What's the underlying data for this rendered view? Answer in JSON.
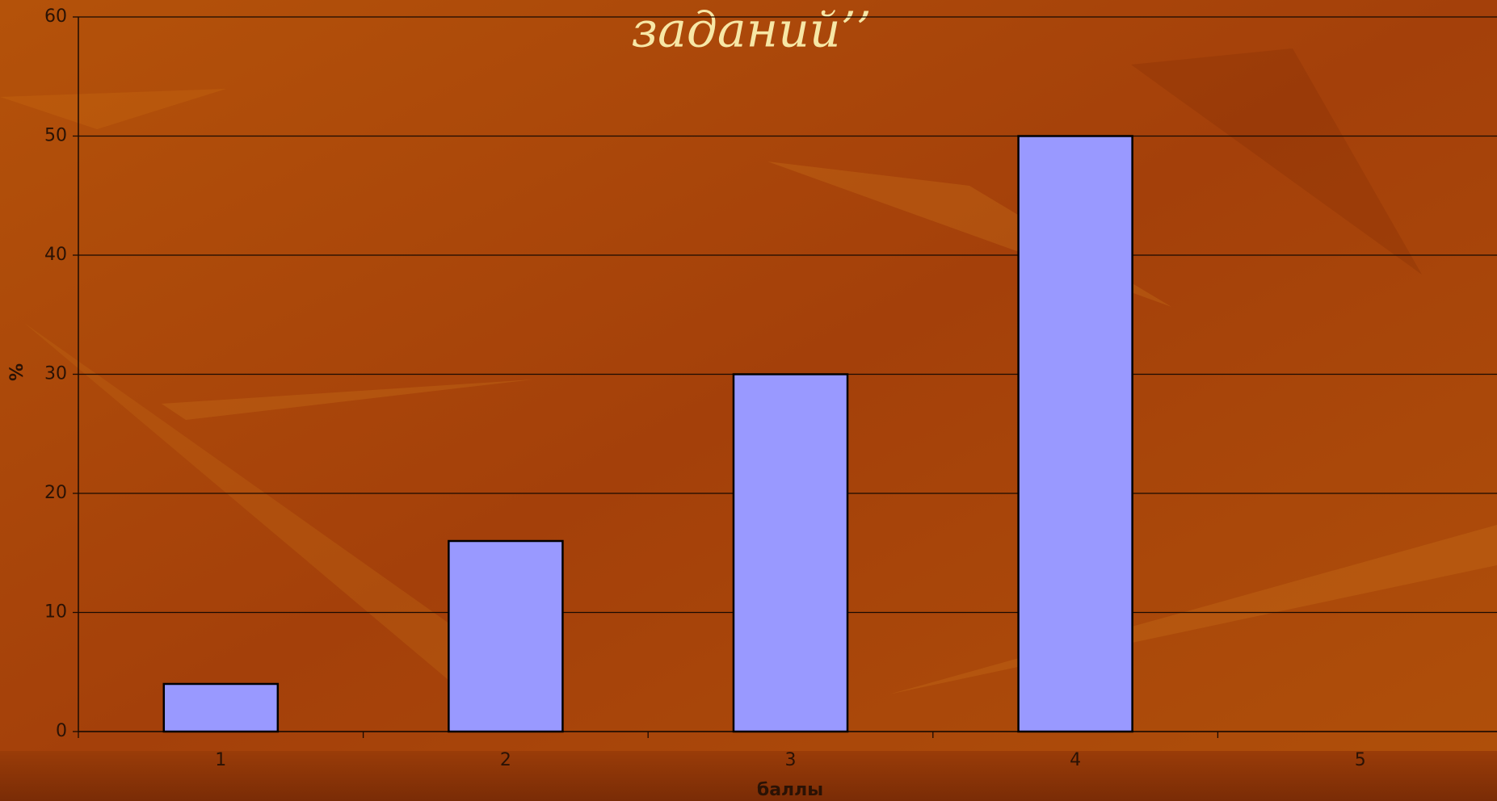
{
  "chart_data": {
    "type": "bar",
    "title": "заданий’’",
    "x_label": "баллы",
    "y_label": "%",
    "categories": [
      "1",
      "2",
      "3",
      "4",
      "5"
    ],
    "values": [
      4,
      16,
      30,
      50,
      0
    ],
    "color": "#9999ff",
    "ylim": [
      0,
      60
    ],
    "yticks": [
      0,
      10,
      20,
      30,
      40,
      50,
      60
    ],
    "grid": true
  }
}
